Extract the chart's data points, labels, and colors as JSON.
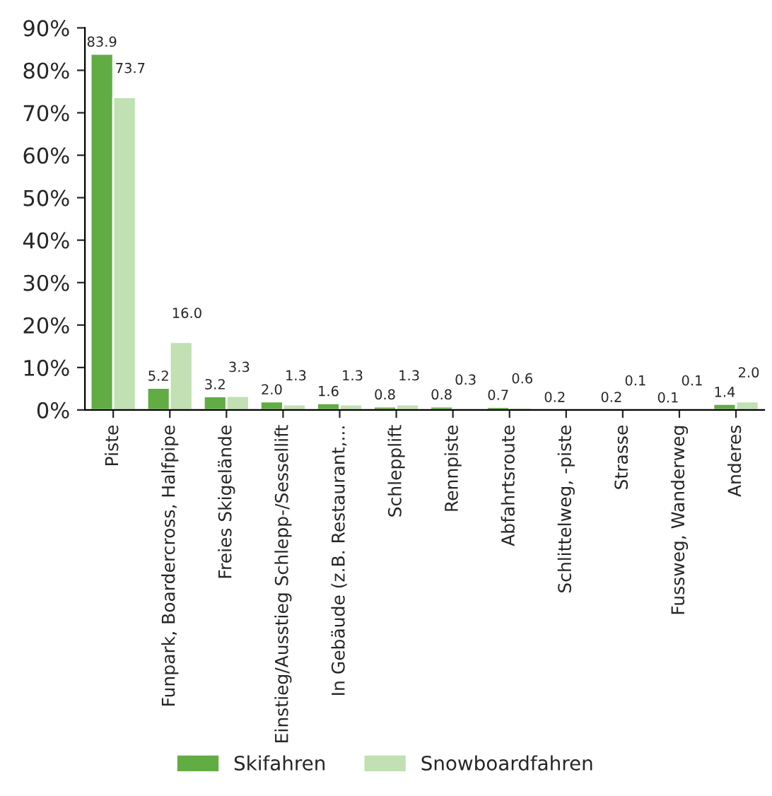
{
  "chart_data": {
    "type": "bar",
    "categories": [
      "Piste",
      "Funpark, Boardercross, Halfpipe",
      "Freies Skigelände",
      "Einstieg/Ausstieg Schlepp-/Sessellift",
      "In Gebäude (z.B. Restaurant,...",
      "Schlepplift",
      "Rennpiste",
      "Abfahrtsroute",
      "Schlittelweg, -piste",
      "Strasse",
      "Fussweg, Wanderweg",
      "Anderes"
    ],
    "series": [
      {
        "name": "Skifahren",
        "color": "#62ac44",
        "values": [
          83.9,
          5.2,
          3.2,
          2.0,
          1.6,
          0.8,
          0.8,
          0.7,
          0.2,
          0.2,
          0.1,
          1.4
        ],
        "value_labels": [
          "83.9",
          "5.2",
          "3.2",
          "2.0",
          "1.6",
          "0.8",
          "0.8",
          "0.7",
          "0.2",
          "0.2",
          "0.1",
          "1.4"
        ]
      },
      {
        "name": "Snowboardfahren",
        "color": "#c1e0b3",
        "values": [
          73.7,
          16.0,
          3.3,
          1.3,
          1.3,
          1.3,
          0.3,
          0.6,
          null,
          0.1,
          0.1,
          2.0
        ],
        "value_labels": [
          "73.7",
          "16.0",
          "3.3",
          "1.3",
          "1.3",
          "1.3",
          "0.3",
          "0.6",
          null,
          "0.1",
          "0.1",
          "2.0"
        ]
      }
    ],
    "ylim": [
      0,
      90
    ],
    "yticks": [
      {
        "value": 0,
        "label": "0%"
      },
      {
        "value": 10,
        "label": "10%"
      },
      {
        "value": 20,
        "label": "20%"
      },
      {
        "value": 30,
        "label": "30%"
      },
      {
        "value": 40,
        "label": "40%"
      },
      {
        "value": 50,
        "label": "50%"
      },
      {
        "value": 60,
        "label": "60%"
      },
      {
        "value": 70,
        "label": "70%"
      },
      {
        "value": 80,
        "label": "80%"
      },
      {
        "value": 90,
        "label": "90%"
      }
    ],
    "grid": false,
    "legend": "bottom"
  }
}
